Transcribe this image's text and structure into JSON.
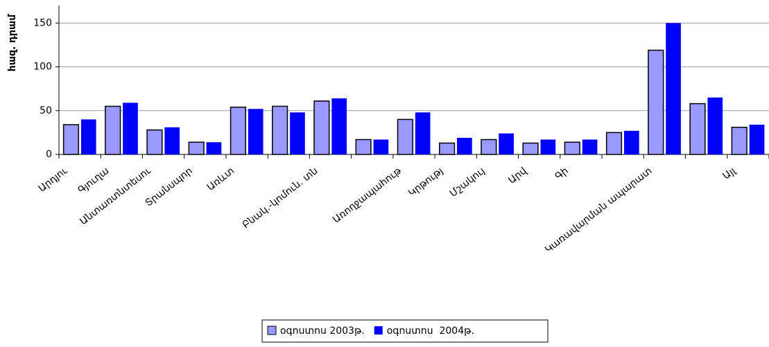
{
  "chart_data": {
    "type": "bar",
    "y_label": "հազ. դրամ",
    "categories": [
      "Արդյու",
      "Գյուղա",
      "Անտառտնտեսու",
      "Տրանսպոր",
      "Առևտ",
      null,
      "Բնակ.-կոմուն. տն",
      null,
      "Առողջապահութ",
      "Կրթությ",
      "Մշակույ",
      "Արվ",
      "Գի",
      null,
      "Կառավարման ապարատ",
      null,
      "Այլ"
    ],
    "series": [
      {
        "name": "օգոստոս 2003թ.",
        "color": "#9999ff",
        "values": [
          34,
          55,
          28,
          14,
          54,
          55,
          61,
          17,
          40,
          13,
          17,
          13,
          14,
          25,
          119,
          58,
          31
        ]
      },
      {
        "name": "օգոստոս  2004թ.",
        "color": "#0000ff",
        "values": [
          40,
          59,
          31,
          14,
          52,
          48,
          64,
          17,
          48,
          19,
          24,
          17,
          17,
          27,
          150,
          65,
          34
        ]
      }
    ],
    "ylim": [
      0,
      170
    ],
    "yticks": [
      0,
      50,
      100,
      150
    ],
    "grid": true,
    "legend": "bottom"
  }
}
